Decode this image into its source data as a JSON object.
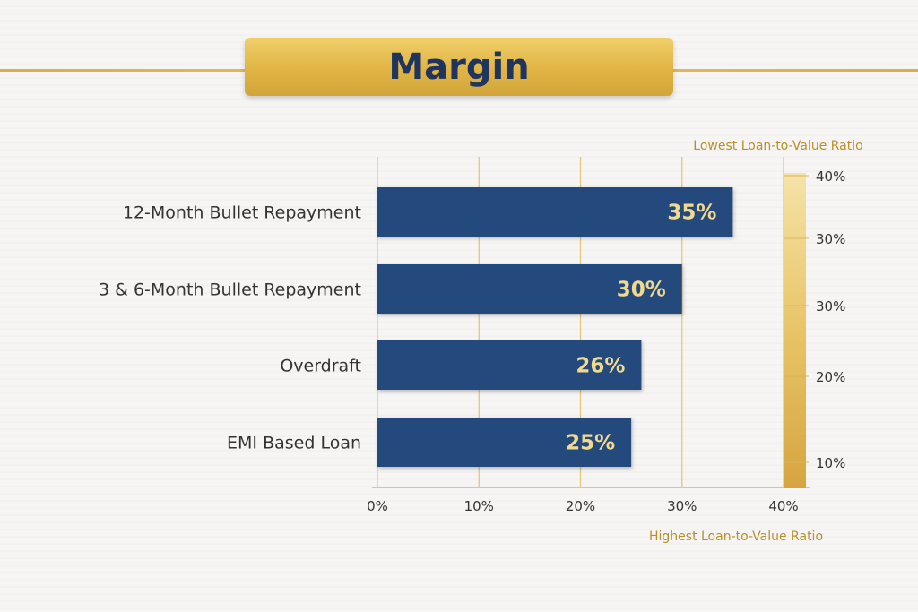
{
  "title": "Margin",
  "chart_data": {
    "type": "bar",
    "orientation": "horizontal",
    "title": "Margin",
    "categories": [
      "12-Month Bullet Repayment",
      "3 & 6-Month Bullet Repayment",
      "Overdraft",
      "EMI Based Loan"
    ],
    "values": [
      35,
      30,
      26,
      25
    ],
    "data_labels": [
      "35%",
      "30%",
      "26%",
      "25%"
    ],
    "xlim": [
      0,
      40
    ],
    "x_ticks": [
      "0%",
      "10%",
      "20%",
      "30%",
      "40%"
    ],
    "xlabel": "Highest Loan-to-Value Ratio",
    "grid": true,
    "color_scale": {
      "label": "Lowest Loan-to-Value Ratio",
      "ticks": [
        "40%",
        "30%",
        "30%",
        "20%",
        "10%"
      ]
    },
    "colors": {
      "bar": "#24497c",
      "label": "#f1d98e",
      "accent": "#d7b04a"
    }
  }
}
